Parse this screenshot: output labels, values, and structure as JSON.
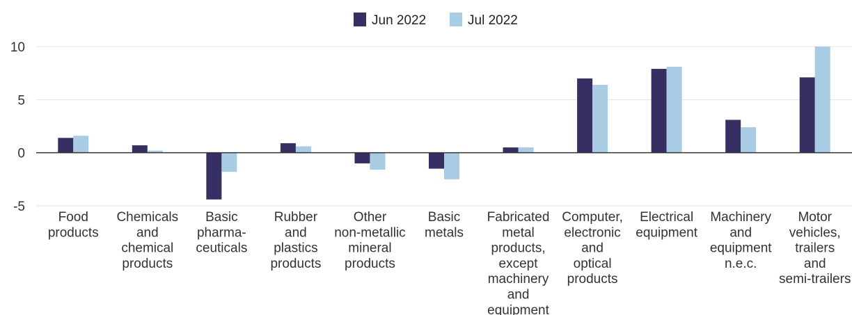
{
  "chart_data": {
    "type": "bar",
    "categories": [
      [
        "Food",
        "products"
      ],
      [
        "Chemicals",
        "and",
        "chemical",
        "products"
      ],
      [
        "Basic",
        "pharma-",
        "ceuticals"
      ],
      [
        "Rubber",
        "and",
        "plastics",
        "products"
      ],
      [
        "Other",
        "non-metallic",
        "mineral",
        "products"
      ],
      [
        "Basic",
        "metals"
      ],
      [
        "Fabricated",
        "metal",
        "products,",
        "except",
        "machinery",
        "and",
        "equipment"
      ],
      [
        "Computer,",
        "electronic",
        "and",
        "optical",
        "products"
      ],
      [
        "Electrical",
        "equipment"
      ],
      [
        "Machinery",
        "and",
        "equipment",
        "n.e.c."
      ],
      [
        "Motor",
        "vehicles,",
        "trailers",
        "and",
        "semi-trailers"
      ]
    ],
    "series": [
      {
        "name": "Jun 2022",
        "color": "#352f63",
        "values": [
          1.4,
          0.7,
          -4.4,
          0.9,
          -1.0,
          -1.5,
          0.5,
          7.0,
          7.9,
          3.1,
          7.1
        ]
      },
      {
        "name": "Jul 2022",
        "color": "#a8cce4",
        "values": [
          1.6,
          0.2,
          -1.8,
          0.6,
          -1.6,
          -2.5,
          0.5,
          6.4,
          8.1,
          2.4,
          10.0
        ]
      }
    ],
    "ylim": [
      -5,
      10
    ],
    "yticks": [
      -5,
      0,
      5,
      10
    ],
    "grid": true,
    "legend": "top-center"
  }
}
